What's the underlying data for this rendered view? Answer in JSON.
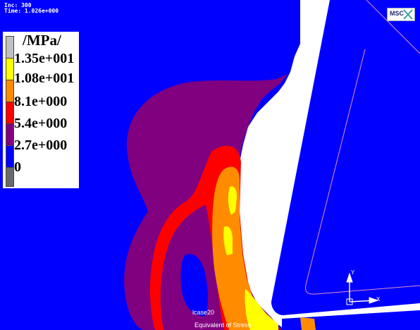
{
  "header": {
    "inc_text": "Inc:   300",
    "time_text": "Time:  1.026e+000"
  },
  "legend": {
    "unit": "/MPa/",
    "labels": [
      "1.35e+001",
      "1.08e+001",
      "8.1e+000",
      "5.4e+000",
      "2.7e+000",
      "0"
    ],
    "colors": [
      "#c0c0c0",
      "#ffff00",
      "#ff8c00",
      "#ff0000",
      "#800080",
      "#0000ff",
      "#696969"
    ]
  },
  "bottom_labels": {
    "case": "lcase20",
    "result": "Equivalent of Stress"
  },
  "logo": {
    "text": "MSC"
  },
  "axes": {
    "y": "Y",
    "x": "X"
  },
  "colors": {
    "blue": "#0000ff",
    "purple": "#800080",
    "red": "#ff0000",
    "orange": "#ff8c00",
    "yellow": "#ffff00",
    "white": "#ffffff"
  }
}
